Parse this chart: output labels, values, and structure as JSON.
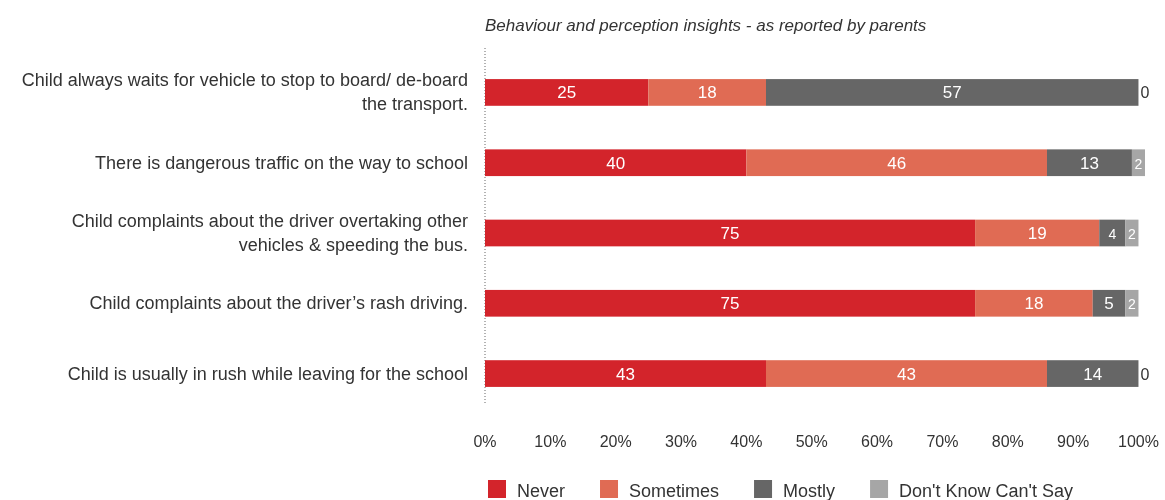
{
  "chart_data": {
    "type": "bar",
    "orientation": "horizontal",
    "stacked": true,
    "title": "Behaviour and perception insights - as reported by parents",
    "categories": [
      "Child always waits for vehicle to stop to board/ de-board the transport.",
      "There is dangerous traffic on the way to school",
      "Child complaints about the driver overtaking other vehicles & speeding the bus.",
      "Child complaints about the driver’s rash driving.",
      "Child is usually in rush while leaving for the school"
    ],
    "series": [
      {
        "name": "Never",
        "color": "#d3242b",
        "values": [
          25,
          40,
          75,
          75,
          43
        ]
      },
      {
        "name": "Sometimes",
        "color": "#e06b54",
        "values": [
          18,
          46,
          19,
          18,
          43
        ]
      },
      {
        "name": "Mostly",
        "color": "#666666",
        "values": [
          57,
          13,
          4,
          5,
          14
        ]
      },
      {
        "name": "Don't Know Can't Say",
        "color": "#a6a6a6",
        "values": [
          0,
          2,
          2,
          2,
          0
        ]
      }
    ],
    "xlim": [
      0,
      101
    ],
    "xticks": [
      {
        "value": 0,
        "label": "0%"
      },
      {
        "value": 10,
        "label": "10%"
      },
      {
        "value": 20,
        "label": "20%"
      },
      {
        "value": 30,
        "label": "30%"
      },
      {
        "value": 40,
        "label": "40%"
      },
      {
        "value": 50,
        "label": "50%"
      },
      {
        "value": 60,
        "label": "60%"
      },
      {
        "value": 70,
        "label": "70%"
      },
      {
        "value": 80,
        "label": "80%"
      },
      {
        "value": 90,
        "label": "90%"
      },
      {
        "value": 100,
        "label": "100%"
      }
    ],
    "data_labels": true,
    "grid": false,
    "legend": "bottom"
  }
}
